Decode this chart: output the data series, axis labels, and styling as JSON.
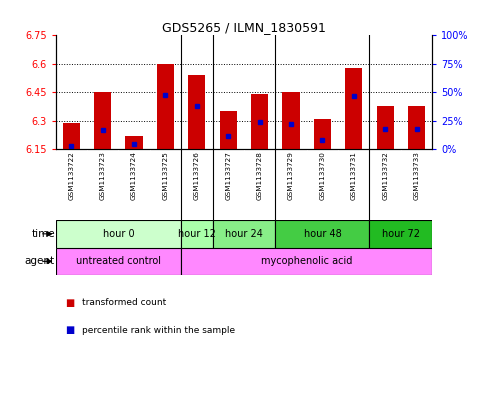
{
  "title": "GDS5265 / ILMN_1830591",
  "samples": [
    "GSM1133722",
    "GSM1133723",
    "GSM1133724",
    "GSM1133725",
    "GSM1133726",
    "GSM1133727",
    "GSM1133728",
    "GSM1133729",
    "GSM1133730",
    "GSM1133731",
    "GSM1133732",
    "GSM1133733"
  ],
  "bar_bottom": 6.15,
  "bar_tops": [
    6.29,
    6.45,
    6.22,
    6.6,
    6.54,
    6.35,
    6.44,
    6.45,
    6.31,
    6.58,
    6.38,
    6.38
  ],
  "percentile_values": [
    0.03,
    0.17,
    0.05,
    0.48,
    0.38,
    0.12,
    0.24,
    0.22,
    0.08,
    0.47,
    0.18,
    0.18
  ],
  "ylim": [
    6.15,
    6.75
  ],
  "yticks": [
    6.15,
    6.3,
    6.45,
    6.6,
    6.75
  ],
  "right_ytick_labels": [
    "0%",
    "25%",
    "50%",
    "75%",
    "100%"
  ],
  "right_ytick_vals": [
    0,
    25,
    50,
    75,
    100
  ],
  "bar_color": "#cc0000",
  "percentile_color": "#0000cc",
  "bar_width": 0.55,
  "group_boundaries": [
    3.5,
    4.5,
    6.5,
    9.5
  ],
  "time_groups": [
    {
      "label": "hour 0",
      "start": 0,
      "end": 3,
      "color": "#ccffcc"
    },
    {
      "label": "hour 12",
      "start": 4,
      "end": 4,
      "color": "#aaffaa"
    },
    {
      "label": "hour 24",
      "start": 5,
      "end": 6,
      "color": "#88ee88"
    },
    {
      "label": "hour 48",
      "start": 7,
      "end": 9,
      "color": "#44cc44"
    },
    {
      "label": "hour 72",
      "start": 10,
      "end": 11,
      "color": "#22bb22"
    }
  ],
  "agent_groups": [
    {
      "label": "untreated control",
      "start": 0,
      "end": 3,
      "color": "#ff88ff"
    },
    {
      "label": "mycophenolic acid",
      "start": 4,
      "end": 11,
      "color": "#ff88ff"
    }
  ],
  "legend_red": "transformed count",
  "legend_blue": "percentile rank within the sample",
  "sample_bg": "#d0d0d0"
}
